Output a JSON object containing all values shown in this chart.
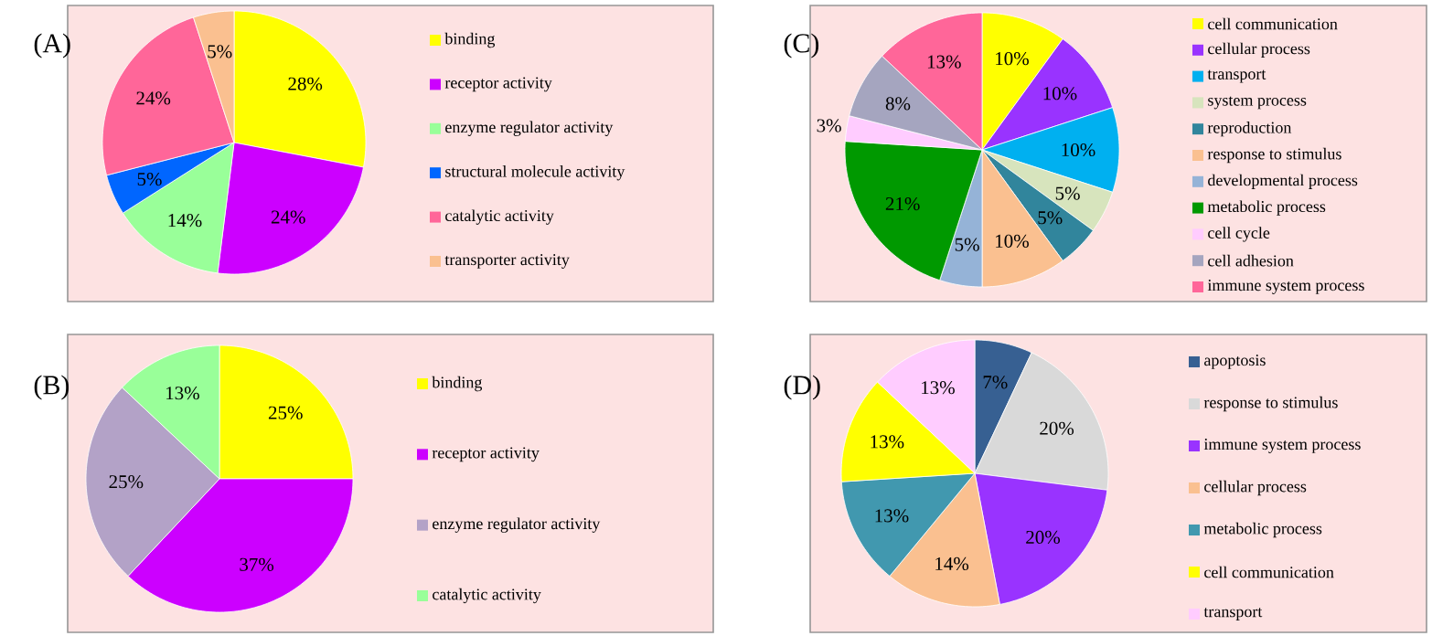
{
  "chart_data": [
    {
      "type": "pie",
      "title": "(A)",
      "legend": "right",
      "categories": [
        "binding",
        "receptor activity",
        "enzyme regulator activity",
        "structural molecule activity",
        "catalytic activity",
        "transporter activity"
      ],
      "values": [
        28,
        24,
        14,
        5,
        24,
        5
      ],
      "value_labels": [
        "28%",
        "24%",
        "14%",
        "5%",
        "24%",
        "5%"
      ],
      "colors": [
        "#ffff00",
        "#cc00ff",
        "#99ff99",
        "#0066ff",
        "#ff6699",
        "#fac090"
      ]
    },
    {
      "type": "pie",
      "title": "(B)",
      "legend": "right",
      "categories": [
        "binding",
        "receptor activity",
        "enzyme regulator activity",
        "catalytic activity"
      ],
      "values": [
        25,
        37,
        25,
        13
      ],
      "value_labels": [
        "25%",
        "37%",
        "25%",
        "13%"
      ],
      "colors": [
        "#ffff00",
        "#cc00ff",
        "#b3a2c7",
        "#99ff99"
      ]
    },
    {
      "type": "pie",
      "title": "(C)",
      "legend": "right",
      "categories": [
        "cell communication",
        "cellular process",
        "transport",
        "system process",
        "reproduction",
        "response to stimulus",
        "developmental process",
        "metabolic process",
        "cell cycle",
        "cell adhesion",
        "immune system process"
      ],
      "values": [
        10,
        10,
        10,
        5,
        5,
        10,
        5,
        21,
        3,
        8,
        13
      ],
      "value_labels": [
        "10%",
        "10%",
        "10%",
        "5%",
        "5%",
        "10%",
        "5%",
        "21%",
        "3%",
        "8%",
        "13%"
      ],
      "colors": [
        "#ffff00",
        "#9933ff",
        "#00b0f0",
        "#d7e4bd",
        "#31859c",
        "#fac090",
        "#95b3d7",
        "#009900",
        "#ffccff",
        "#a5a5bf",
        "#ff6699"
      ]
    },
    {
      "type": "pie",
      "title": "(D)",
      "legend": "right",
      "categories": [
        "apoptosis",
        "response to stimulus",
        "immune system process",
        "cellular process",
        "metabolic process",
        "cell communication",
        "transport"
      ],
      "values": [
        7,
        20,
        20,
        14,
        13,
        13,
        13
      ],
      "value_labels": [
        "7%",
        "20%",
        "20%",
        "14%",
        "13%",
        "13%",
        "13%"
      ],
      "colors": [
        "#376092",
        "#d9d9d9",
        "#9933ff",
        "#fac090",
        "#4198af",
        "#ffff00",
        "#ffccff"
      ]
    }
  ]
}
